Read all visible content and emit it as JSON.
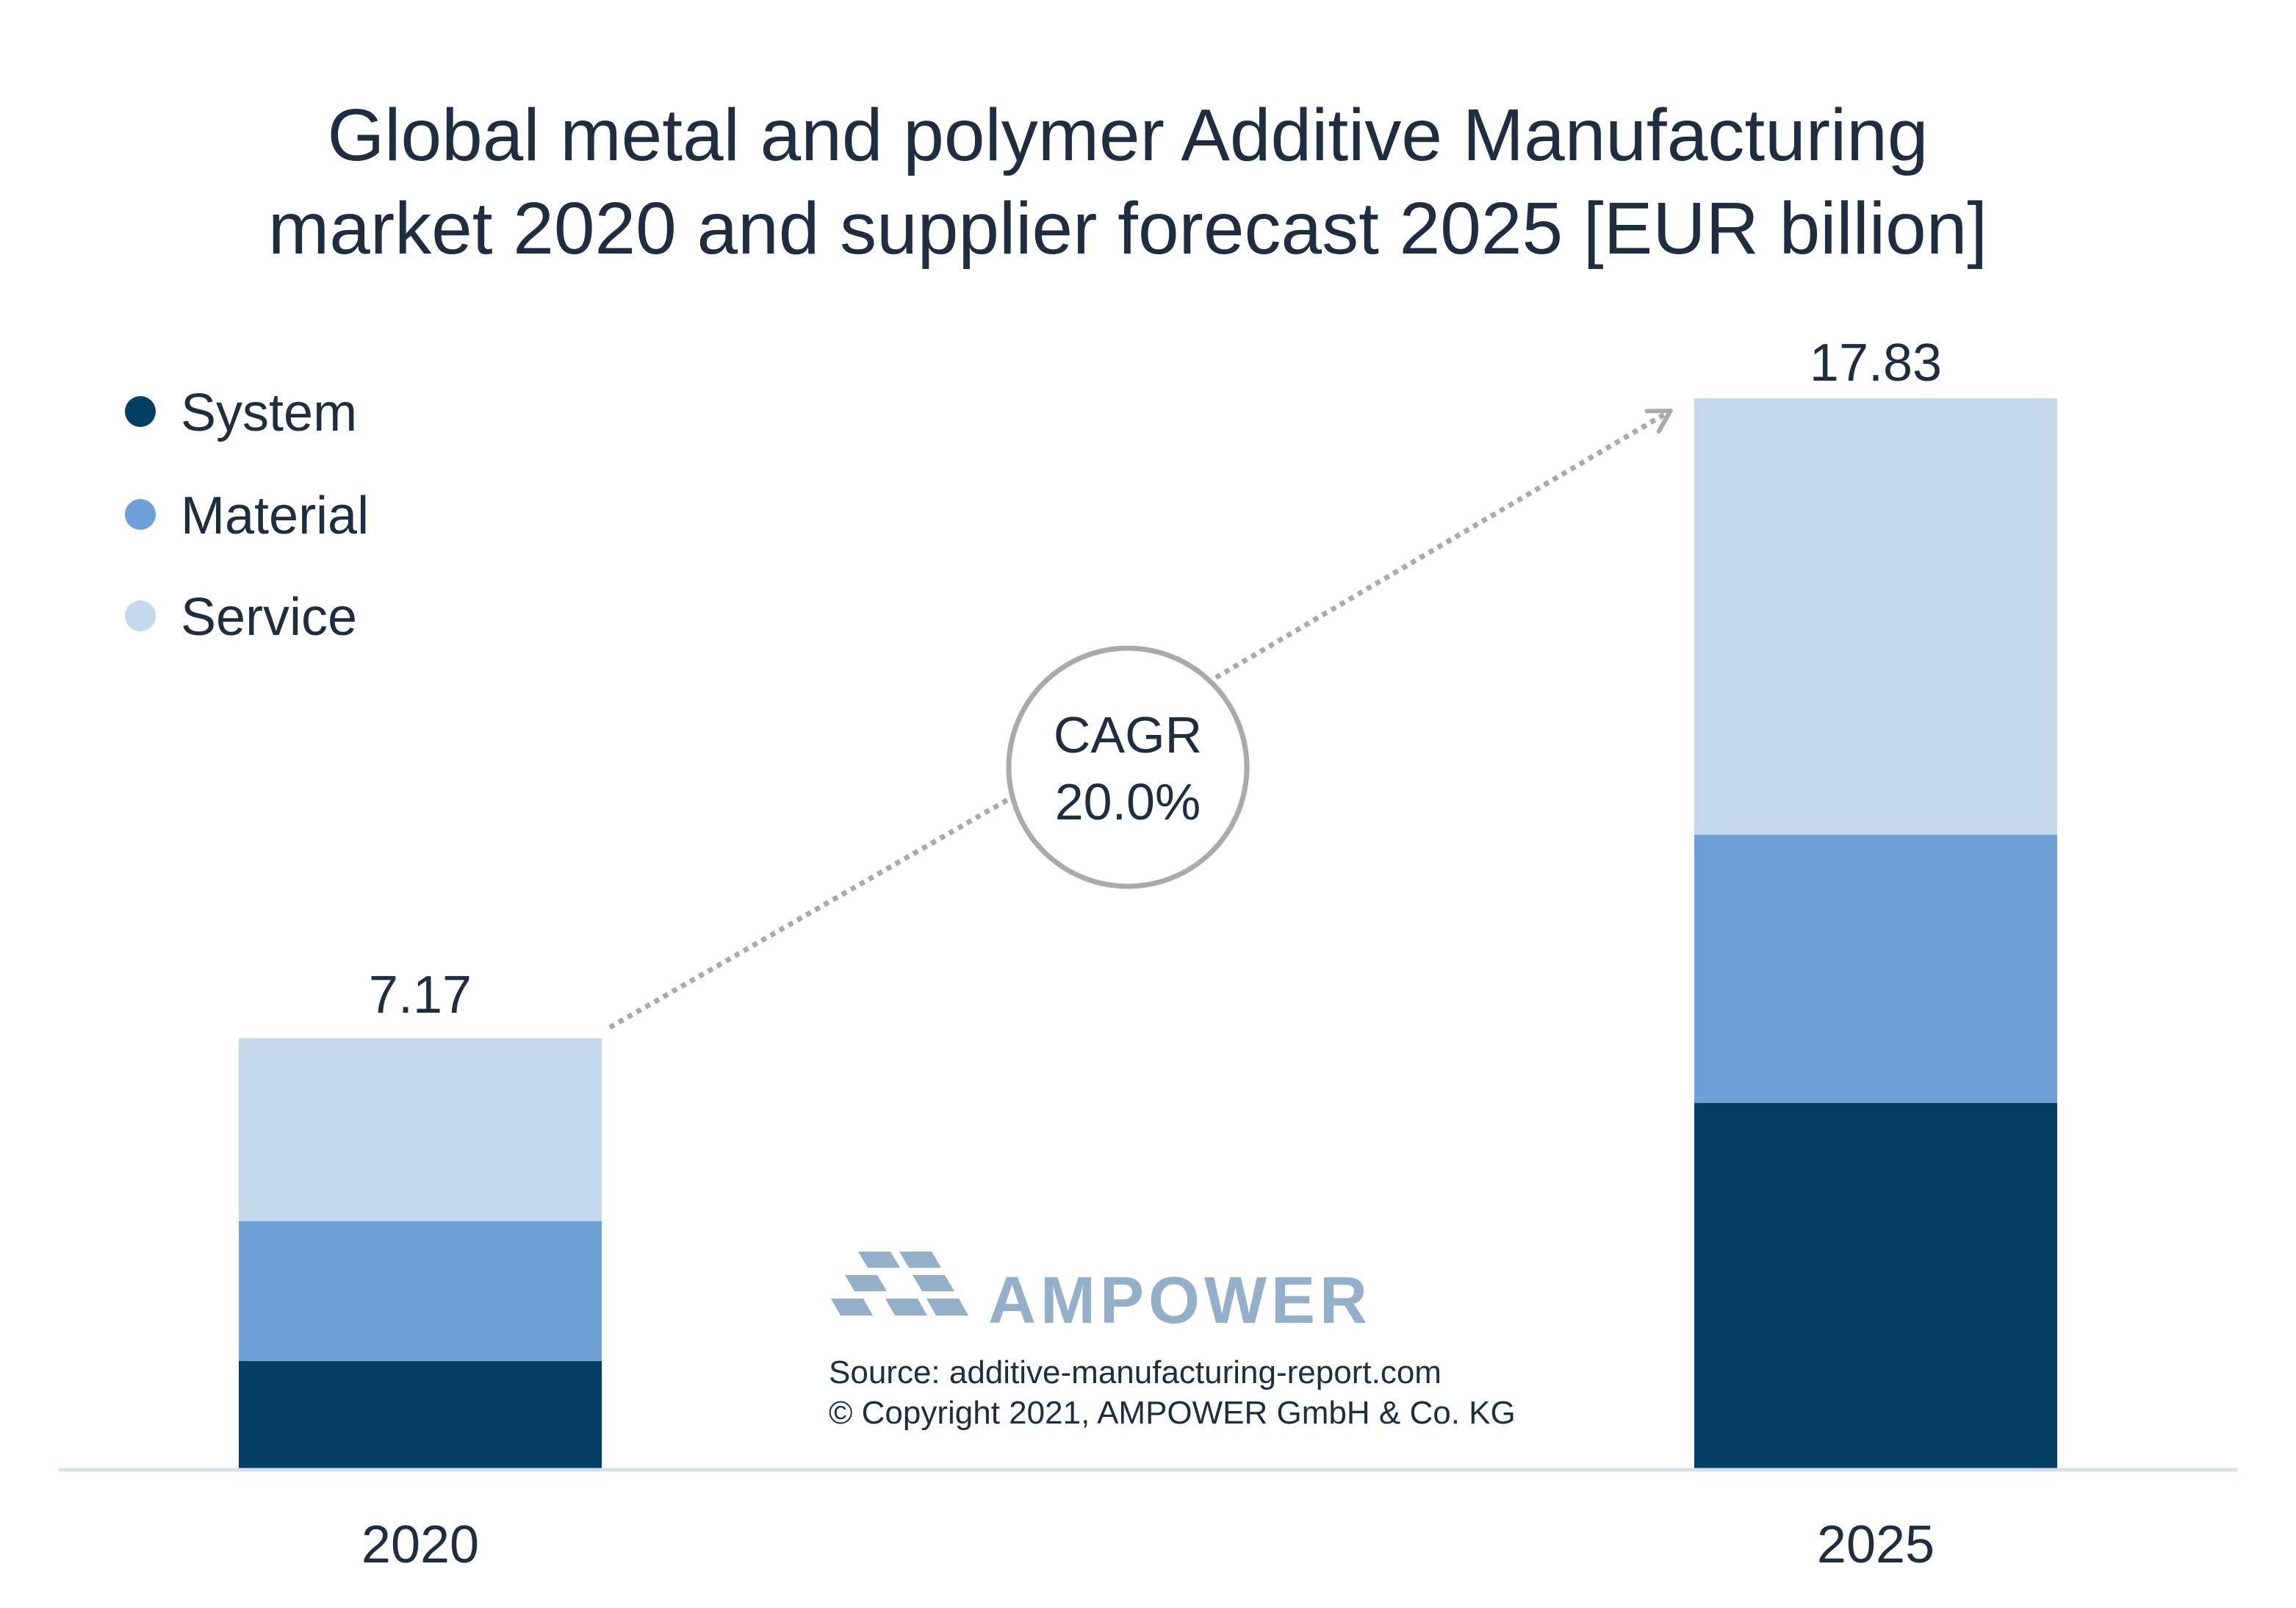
{
  "chart_data": {
    "type": "bar",
    "stacked": true,
    "title_lines": [
      "Global metal and polymer Additive Manufacturing",
      "market 2020 and supplier forecast 2025 [EUR billion]"
    ],
    "categories": [
      "2020",
      "2025"
    ],
    "series": [
      {
        "name": "System",
        "color": "#033f63",
        "values": [
          1.79,
          6.09
        ]
      },
      {
        "name": "Material",
        "color": "#6e9fd6",
        "values": [
          2.33,
          4.47
        ]
      },
      {
        "name": "Service",
        "color": "#c5d9ed",
        "values": [
          3.05,
          7.27
        ]
      }
    ],
    "totals": [
      7.17,
      17.83
    ],
    "total_labels": [
      "7.17",
      "17.83"
    ],
    "ylim": [
      0,
      20
    ],
    "grid": false,
    "legend_position": "top-left",
    "annotation": {
      "line1": "CAGR",
      "line2": "20.0%"
    }
  },
  "branding": {
    "logo_name": "AMPOWER",
    "source_line": "Source: additive-manufacturing-report.com",
    "copyright_line": "© Copyright 2021, AMPOWER GmbH & Co. KG"
  }
}
